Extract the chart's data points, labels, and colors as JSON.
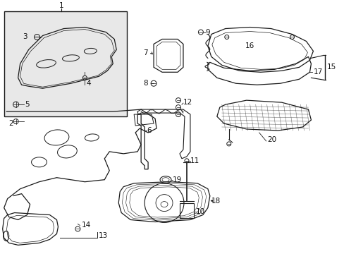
{
  "bg_color": "#ffffff",
  "box_bg": "#e8e8e8",
  "line_color": "#1a1a1a",
  "label_color": "#111111",
  "fig_width": 4.89,
  "fig_height": 3.6,
  "dpi": 100
}
